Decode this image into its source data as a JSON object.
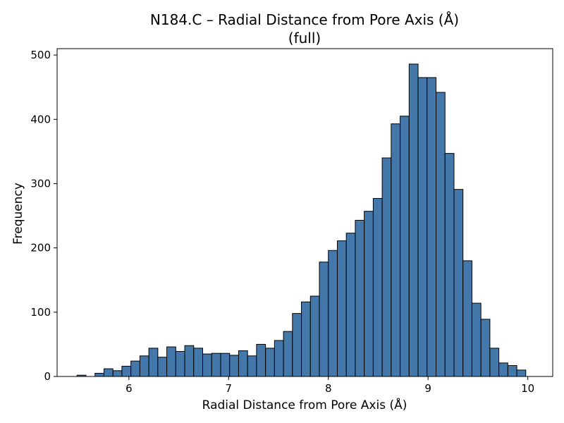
{
  "chart_data": {
    "type": "bar",
    "title": "N184.C – Radial Distance from Pore Axis (Å)",
    "subtitle": "(full)",
    "xlabel": "Radial Distance from Pore Axis (Å)",
    "ylabel": "Frequency",
    "xlim": [
      5.28,
      10.25
    ],
    "ylim": [
      0,
      510
    ],
    "xticks": [
      6,
      7,
      8,
      9,
      10
    ],
    "yticks": [
      0,
      100,
      200,
      300,
      400,
      500
    ],
    "grid": false,
    "bar_color": "#4477aa",
    "edge_color": "#000000",
    "bins": {
      "start": 5.48,
      "width": 0.09,
      "values": [
        2,
        0,
        5,
        12,
        9,
        16,
        24,
        32,
        44,
        30,
        46,
        39,
        48,
        44,
        35,
        36,
        36,
        33,
        40,
        32,
        50,
        44,
        56,
        70,
        98,
        116,
        125,
        178,
        196,
        211,
        223,
        243,
        257,
        277,
        340,
        393,
        405,
        486,
        465,
        465,
        442,
        347,
        291,
        180,
        114,
        89,
        44,
        21,
        17,
        10
      ]
    }
  }
}
